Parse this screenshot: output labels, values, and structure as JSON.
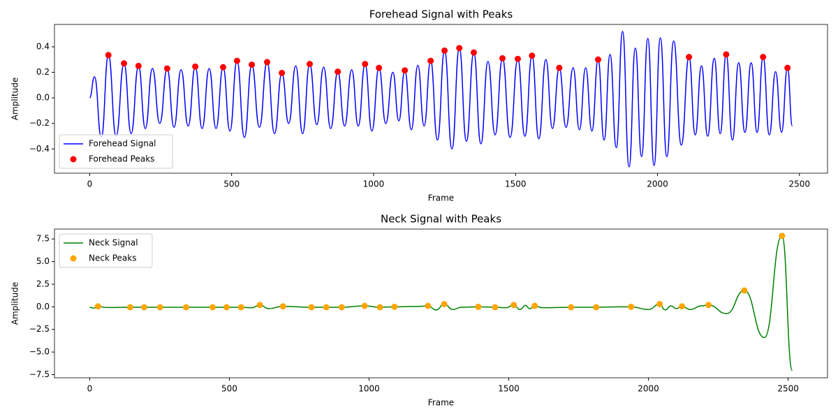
{
  "chart_data": [
    {
      "type": "line",
      "title": "Forehead Signal with Peaks",
      "xlabel": "Frame",
      "ylabel": "Amplitude",
      "xlim": [
        -124,
        2599
      ],
      "xticks": [
        0,
        500,
        1000,
        1500,
        2000,
        2500
      ],
      "ylim": [
        -0.59,
        0.575
      ],
      "yticks": [
        {
          "value": -0.4,
          "label": "−0.4"
        },
        {
          "value": -0.2,
          "label": "−0.2"
        },
        {
          "value": 0,
          "label": "0.0"
        },
        0.2,
        0.4
      ],
      "legend": "lower left",
      "series": [
        {
          "name": "Forehead Signal",
          "type": "line",
          "color": "#0000ff",
          "x": [
            0,
            17,
            41,
            66,
            93,
            121,
            146,
            172,
            196,
            221,
            247,
            273,
            297,
            322,
            347,
            372,
            396,
            421,
            445,
            470,
            494,
            519,
            545,
            571,
            598,
            625,
            651,
            677,
            701,
            726,
            750,
            775,
            800,
            824,
            849,
            874,
            898,
            923,
            946,
            970,
            994,
            1019,
            1043,
            1068,
            1089,
            1110,
            1133,
            1156,
            1178,
            1201,
            1225,
            1250,
            1276,
            1302,
            1327,
            1353,
            1378,
            1403,
            1428,
            1454,
            1481,
            1508,
            1533,
            1558,
            1582,
            1607,
            1630,
            1654,
            1678,
            1703,
            1725,
            1747,
            1769,
            1791,
            1812,
            1833,
            1855,
            1877,
            1900,
            1922,
            1944,
            1966,
            1988,
            2010,
            2033,
            2057,
            2084,
            2111,
            2133,
            2155,
            2177,
            2200,
            2221,
            2242,
            2264,
            2286,
            2308,
            2330,
            2351,
            2372,
            2394,
            2416,
            2437,
            2458,
            2475
          ],
          "values": [
            0,
            0.165,
            -0.31,
            0.335,
            -0.3,
            0.27,
            -0.28,
            0.25,
            -0.24,
            0.23,
            -0.2,
            0.23,
            -0.23,
            0.22,
            -0.22,
            0.245,
            -0.24,
            0.23,
            -0.24,
            0.24,
            -0.26,
            0.29,
            -0.31,
            0.26,
            -0.23,
            0.28,
            -0.28,
            0.195,
            -0.2,
            0.25,
            -0.28,
            0.265,
            -0.21,
            0.24,
            -0.24,
            0.205,
            -0.22,
            0.22,
            -0.22,
            0.265,
            -0.26,
            0.235,
            -0.2,
            0.2,
            -0.18,
            0.215,
            -0.25,
            0.255,
            -0.22,
            0.29,
            -0.33,
            0.37,
            -0.4,
            0.39,
            -0.34,
            0.355,
            -0.36,
            0.285,
            -0.29,
            0.31,
            -0.31,
            0.305,
            -0.3,
            0.33,
            -0.32,
            0.3,
            -0.24,
            0.235,
            -0.23,
            0.235,
            -0.25,
            0.235,
            -0.26,
            0.3,
            -0.33,
            0.34,
            -0.39,
            0.52,
            -0.54,
            0.39,
            -0.46,
            0.465,
            -0.53,
            0.47,
            -0.46,
            0.445,
            -0.37,
            0.32,
            -0.29,
            0.25,
            -0.3,
            0.31,
            -0.28,
            0.34,
            -0.33,
            0.275,
            -0.27,
            0.275,
            -0.27,
            0.32,
            -0.29,
            0.205,
            -0.27,
            0.235,
            -0.22
          ]
        },
        {
          "name": "Forehead Peaks",
          "type": "scatter",
          "color": "#ff0000",
          "x": [
            66,
            121,
            172,
            273,
            372,
            470,
            519,
            571,
            625,
            677,
            775,
            874,
            970,
            1019,
            1110,
            1201,
            1250,
            1302,
            1353,
            1454,
            1508,
            1558,
            1654,
            1791,
            2111,
            2242,
            2372,
            2458
          ],
          "values": [
            0.335,
            0.27,
            0.25,
            0.23,
            0.245,
            0.24,
            0.29,
            0.26,
            0.28,
            0.195,
            0.265,
            0.205,
            0.265,
            0.235,
            0.215,
            0.29,
            0.37,
            0.39,
            0.355,
            0.31,
            0.305,
            0.33,
            0.235,
            0.3,
            0.32,
            0.34,
            0.32,
            0.235
          ]
        }
      ]
    },
    {
      "type": "line",
      "title": "Neck Signal with Peaks",
      "xlabel": "Frame",
      "ylabel": "Amplitude",
      "xlim": [
        -126,
        2641
      ],
      "xticks": [
        0,
        500,
        1000,
        1500,
        2000,
        2500
      ],
      "ylim": [
        -7.85,
        8.6
      ],
      "yticks": [
        {
          "value": -7.5,
          "label": "−7.5"
        },
        {
          "value": -5,
          "label": "−5.0"
        },
        {
          "value": -2.5,
          "label": "−2.5"
        },
        {
          "value": 0,
          "label": "0.0"
        },
        2.5,
        {
          "value": 5,
          "label": "5.0"
        },
        7.5
      ],
      "legend": "upper left",
      "series": [
        {
          "name": "Neck Signal",
          "type": "line",
          "color": "#008000",
          "x": [
            0,
            15,
            30,
            60,
            145,
            195,
            252,
            345,
            440,
            490,
            542,
            580,
            609,
            640,
            692,
            794,
            847,
            902,
            984,
            1039,
            1091,
            1180,
            1211,
            1240,
            1269,
            1300,
            1330,
            1391,
            1451,
            1490,
            1518,
            1540,
            1560,
            1575,
            1593,
            1620,
            1723,
            1813,
            1900,
            1938,
            2000,
            2040,
            2060,
            2080,
            2100,
            2120,
            2150,
            2190,
            2215,
            2280,
            2343,
            2415,
            2478,
            2515
          ],
          "values": [
            -0.05,
            -0.15,
            0.05,
            -0.08,
            -0.05,
            -0.05,
            -0.05,
            -0.05,
            -0.05,
            -0.05,
            -0.05,
            -0.1,
            0.2,
            -0.2,
            0.05,
            -0.05,
            -0.05,
            -0.05,
            0.1,
            -0.05,
            0,
            0.05,
            0.1,
            -0.35,
            0.3,
            -0.3,
            -0.05,
            0,
            -0.05,
            -0.1,
            0.2,
            -0.3,
            0.15,
            -0.2,
            0.1,
            -0.1,
            -0.05,
            -0.05,
            0,
            0,
            -0.3,
            0.3,
            -0.35,
            0.1,
            -0.2,
            0.05,
            -0.3,
            0.1,
            0.2,
            -0.75,
            1.8,
            -3.4,
            7.85,
            -7.05
          ]
        },
        {
          "name": "Neck Peaks",
          "type": "scatter",
          "color": "#ffa500",
          "x": [
            30,
            145,
            195,
            252,
            345,
            440,
            490,
            542,
            609,
            692,
            794,
            847,
            902,
            984,
            1039,
            1091,
            1211,
            1269,
            1391,
            1451,
            1518,
            1593,
            1723,
            1813,
            1938,
            2040,
            2120,
            2215,
            2343,
            2478
          ],
          "values": [
            0.05,
            -0.05,
            -0.05,
            -0.05,
            -0.05,
            -0.05,
            -0.05,
            -0.05,
            0.2,
            0.05,
            -0.05,
            -0.05,
            -0.05,
            0.1,
            -0.05,
            0,
            0.1,
            0.3,
            0,
            -0.05,
            0.2,
            0.1,
            -0.05,
            -0.05,
            0,
            0.3,
            0.05,
            0.2,
            1.8,
            7.85
          ]
        }
      ]
    }
  ]
}
